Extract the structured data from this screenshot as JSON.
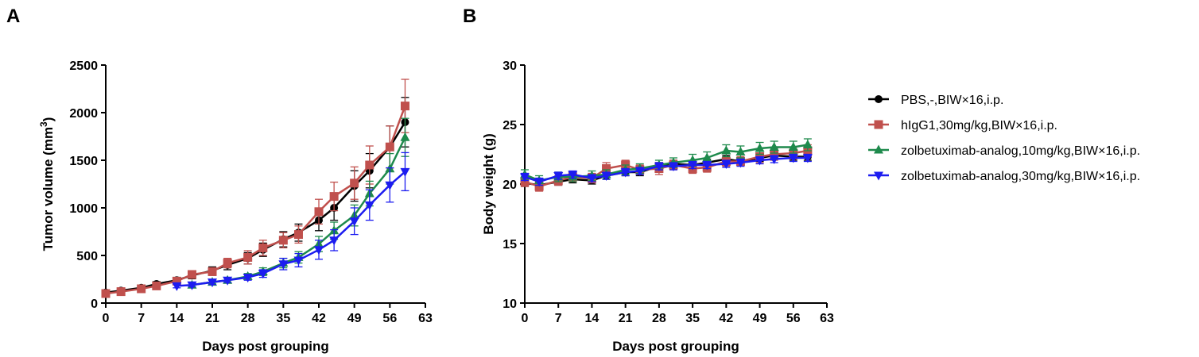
{
  "chart_data": [
    {
      "type": "line",
      "panel_label": "A",
      "xlabel": "Days post grouping",
      "ylabel": "Tumor volume (mm",
      "ylabel_superscript": "3",
      "ylabel_suffix": ")",
      "xlim": [
        0,
        63
      ],
      "ylim": [
        0,
        2500
      ],
      "x_ticks": [
        0,
        7,
        14,
        21,
        28,
        35,
        42,
        49,
        56,
        63
      ],
      "x_tick_labels": [
        "0",
        "7",
        "14",
        "21",
        "28",
        "35",
        "42",
        "49",
        "56",
        "63"
      ],
      "y_ticks": [
        0,
        500,
        1000,
        1500,
        2000,
        2500
      ],
      "y_tick_labels": [
        "0",
        "500",
        "1000",
        "1500",
        "2000",
        "2500"
      ],
      "grid": false,
      "series": [
        {
          "name": "PBS,-,BIW×16,i.p.",
          "color": "#000000",
          "marker": "circle",
          "x": [
            0,
            3,
            7,
            10,
            14,
            17,
            21,
            24,
            28,
            31,
            35,
            38,
            42,
            45,
            49,
            52,
            56,
            59
          ],
          "y": [
            110,
            130,
            160,
            200,
            240,
            290,
            340,
            400,
            470,
            560,
            670,
            740,
            870,
            1000,
            1230,
            1390,
            1640,
            1900
          ],
          "err": [
            20,
            20,
            25,
            25,
            30,
            35,
            40,
            50,
            60,
            70,
            80,
            90,
            110,
            130,
            160,
            180,
            220,
            260
          ]
        },
        {
          "name": "hIgG1,30mg/kg,BIW×16,i.p.",
          "color": "#c0504d",
          "marker": "square",
          "x": [
            0,
            3,
            7,
            10,
            14,
            17,
            21,
            24,
            28,
            31,
            35,
            38,
            42,
            45,
            49,
            52,
            56,
            59
          ],
          "y": [
            100,
            120,
            150,
            180,
            230,
            300,
            330,
            420,
            480,
            580,
            660,
            720,
            960,
            1120,
            1260,
            1450,
            1640,
            2070
          ],
          "err": [
            20,
            20,
            25,
            25,
            30,
            40,
            40,
            50,
            70,
            80,
            80,
            90,
            130,
            150,
            170,
            200,
            220,
            280
          ]
        },
        {
          "name": "zolbetuximab-analog,10mg/kg,BIW×16,i.p.",
          "color": "#1e8a4c",
          "marker": "triangle-up",
          "x": [
            17,
            21,
            24,
            28,
            31,
            35,
            38,
            42,
            45,
            49,
            52,
            56,
            59
          ],
          "y": [
            190,
            220,
            240,
            280,
            330,
            420,
            480,
            620,
            760,
            920,
            1150,
            1410,
            1740
          ],
          "err": [
            20,
            20,
            25,
            30,
            40,
            50,
            60,
            80,
            90,
            110,
            130,
            160,
            200
          ]
        },
        {
          "name": "zolbetuximab-analog,30mg/kg,BIW×16,i.p.",
          "color": "#1c1cf0",
          "marker": "triangle-down",
          "x": [
            14,
            17,
            21,
            24,
            28,
            31,
            35,
            38,
            42,
            45,
            49,
            52,
            56,
            59
          ],
          "y": [
            180,
            190,
            220,
            240,
            270,
            310,
            410,
            450,
            560,
            660,
            860,
            1030,
            1240,
            1380
          ],
          "err": [
            20,
            20,
            25,
            25,
            30,
            40,
            60,
            70,
            100,
            110,
            140,
            160,
            180,
            200
          ]
        }
      ]
    },
    {
      "type": "line",
      "panel_label": "B",
      "xlabel": "Days post grouping",
      "ylabel": "Body weight (g)",
      "xlim": [
        0,
        63
      ],
      "ylim": [
        10,
        30
      ],
      "x_ticks": [
        0,
        7,
        14,
        21,
        28,
        35,
        42,
        49,
        56,
        63
      ],
      "x_tick_labels": [
        "0",
        "7",
        "14",
        "21",
        "28",
        "35",
        "42",
        "49",
        "56",
        "63"
      ],
      "y_ticks": [
        10,
        15,
        20,
        25,
        30
      ],
      "y_tick_labels": [
        "10",
        "15",
        "20",
        "25",
        "30"
      ],
      "grid": false,
      "legend_position": "right",
      "series": [
        {
          "name": "PBS,-,BIW×16,i.p.",
          "color": "#000000",
          "marker": "circle",
          "x": [
            0,
            3,
            7,
            10,
            14,
            17,
            21,
            24,
            28,
            31,
            35,
            38,
            42,
            45,
            49,
            52,
            56,
            59
          ],
          "y": [
            20.1,
            19.9,
            20.2,
            20.4,
            20.3,
            20.7,
            21.0,
            21.0,
            21.5,
            21.7,
            21.6,
            21.8,
            22.1,
            21.9,
            22.2,
            22.4,
            22.3,
            22.3
          ],
          "err": [
            0.3,
            0.3,
            0.3,
            0.3,
            0.3,
            0.3,
            0.3,
            0.3,
            0.3,
            0.3,
            0.3,
            0.3,
            0.3,
            0.3,
            0.3,
            0.3,
            0.3,
            0.3
          ]
        },
        {
          "name": "hIgG1,30mg/kg,BIW×16,i.p.",
          "color": "#c0504d",
          "marker": "square",
          "x": [
            0,
            3,
            7,
            10,
            14,
            17,
            21,
            24,
            28,
            31,
            35,
            38,
            42,
            45,
            49,
            52,
            56,
            59
          ],
          "y": [
            20.2,
            19.8,
            20.3,
            20.6,
            20.5,
            21.3,
            21.6,
            21.2,
            21.3,
            21.6,
            21.3,
            21.4,
            21.9,
            21.9,
            22.3,
            22.5,
            22.6,
            22.8
          ],
          "err": [
            0.4,
            0.4,
            0.4,
            0.4,
            0.4,
            0.5,
            0.4,
            0.4,
            0.5,
            0.4,
            0.4,
            0.4,
            0.4,
            0.4,
            0.5,
            0.5,
            0.5,
            0.5
          ]
        },
        {
          "name": "zolbetuximab-analog,10mg/kg,BIW×16,i.p.",
          "color": "#1e8a4c",
          "marker": "triangle-up",
          "x": [
            0,
            3,
            7,
            10,
            14,
            17,
            21,
            24,
            28,
            31,
            35,
            38,
            42,
            45,
            49,
            52,
            56,
            59
          ],
          "y": [
            20.8,
            20.3,
            20.6,
            20.6,
            20.7,
            20.8,
            21.2,
            21.3,
            21.6,
            21.8,
            22.0,
            22.2,
            22.8,
            22.7,
            23.0,
            23.1,
            23.1,
            23.3
          ],
          "err": [
            0.4,
            0.4,
            0.4,
            0.4,
            0.4,
            0.4,
            0.4,
            0.4,
            0.4,
            0.4,
            0.5,
            0.5,
            0.5,
            0.5,
            0.5,
            0.5,
            0.5,
            0.5
          ]
        },
        {
          "name": "zolbetuximab-analog,30mg/kg,BIW×16,i.p.",
          "color": "#1c1cf0",
          "marker": "triangle-down",
          "x": [
            0,
            3,
            7,
            10,
            14,
            17,
            21,
            24,
            28,
            31,
            35,
            38,
            42,
            45,
            49,
            52,
            56,
            59
          ],
          "y": [
            20.6,
            20.2,
            20.7,
            20.8,
            20.5,
            20.7,
            21.0,
            21.1,
            21.5,
            21.5,
            21.6,
            21.6,
            21.7,
            21.8,
            22.0,
            22.1,
            22.2,
            22.2
          ],
          "err": [
            0.3,
            0.3,
            0.3,
            0.3,
            0.3,
            0.3,
            0.3,
            0.3,
            0.3,
            0.3,
            0.3,
            0.3,
            0.3,
            0.3,
            0.3,
            0.3,
            0.3,
            0.3
          ]
        }
      ]
    }
  ]
}
